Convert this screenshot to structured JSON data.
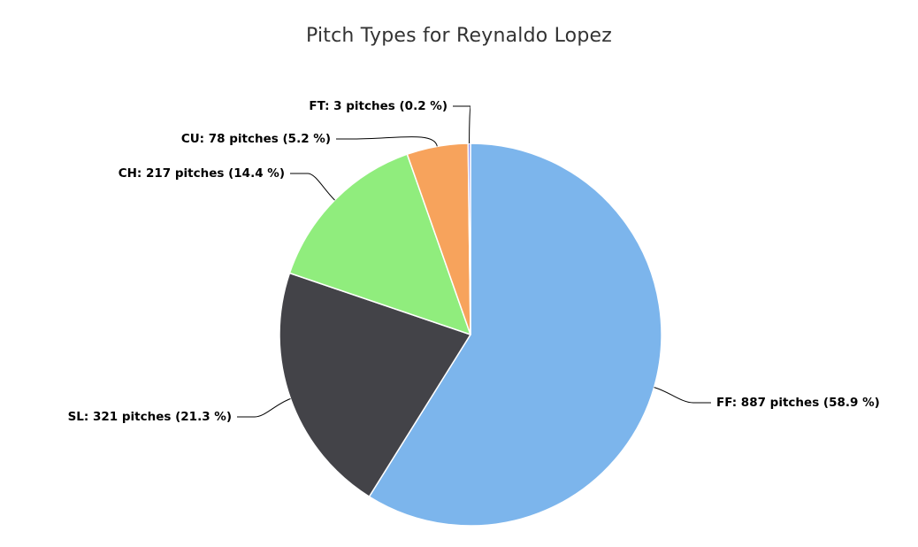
{
  "chart_data": {
    "type": "pie",
    "title": "Pitch Types for Reynaldo Lopez",
    "slices": [
      {
        "name": "FF",
        "value": 887,
        "percent": 58.9,
        "color": "#7cb5ec",
        "label": "FF: 887 pitches (58.9 %)"
      },
      {
        "name": "SL",
        "value": 321,
        "percent": 21.3,
        "color": "#434348",
        "label": "SL: 321 pitches (21.3 %)"
      },
      {
        "name": "CH",
        "value": 217,
        "percent": 14.4,
        "color": "#90ed7d",
        "label": "CH: 217 pitches (14.4 %)"
      },
      {
        "name": "CU",
        "value": 78,
        "percent": 5.2,
        "color": "#f7a35c",
        "label": "CU: 78 pitches (5.2 %)"
      },
      {
        "name": "FT",
        "value": 3,
        "percent": 0.2,
        "color": "#8085e9",
        "label": "FT: 3 pitches (0.2 %)"
      }
    ]
  }
}
